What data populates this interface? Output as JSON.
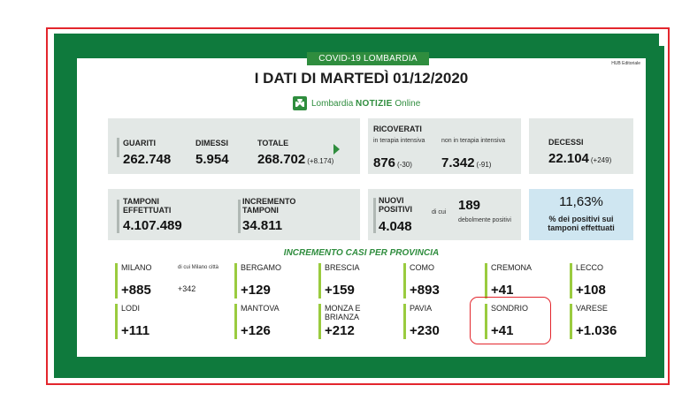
{
  "header": {
    "badge": "COVID-19 LOMBARDIA",
    "hub": "HUB Editoriale",
    "title": "I DATI DI MARTEDÌ 01/12/2020",
    "brand_main": "Lombardia ",
    "brand_bold": "NOTIZIE",
    "brand_suffix": " Online"
  },
  "stats": {
    "guariti": {
      "label": "GUARITI",
      "value": "262.748"
    },
    "dimessi": {
      "label": "DIMESSI",
      "value": "5.954"
    },
    "totale": {
      "label": "TOTALE",
      "value": "268.702",
      "delta": "(+8.174)"
    },
    "ricoverati": {
      "label": "RICOVERATI",
      "terapia_intensiva": {
        "label": "in terapia intensiva",
        "value": "876",
        "delta": "(-30)"
      },
      "non_terapia": {
        "label": "non in terapia intensiva",
        "value": "7.342",
        "delta": "(-91)"
      }
    },
    "decessi": {
      "label": "DECESSI",
      "value": "22.104",
      "delta": "(+249)"
    },
    "tamponi": {
      "label": "TAMPONI EFFETTUATI",
      "value": "4.107.489"
    },
    "incremento_tamponi": {
      "label": "INCREMENTO TAMPONI",
      "value": "34.811"
    },
    "nuovi_positivi": {
      "label": "NUOVI POSITIVI",
      "value": "4.048",
      "di_cui": "di cui",
      "debolmente": "189",
      "debolmente_label": "debolmente positivi"
    },
    "percentuale": {
      "value": "11,63%",
      "label": "% dei positivi sui tamponi effettuati"
    }
  },
  "provinces_title": "INCREMENTO CASI PER PROVINCIA",
  "provinces": [
    {
      "name": "MILANO",
      "value": "+885",
      "note": "di cui Milano città",
      "note_value": "+342"
    },
    {
      "name": "BERGAMO",
      "value": "+129"
    },
    {
      "name": "BRESCIA",
      "value": "+159"
    },
    {
      "name": "COMO",
      "value": "+893"
    },
    {
      "name": "CREMONA",
      "value": "+41"
    },
    {
      "name": "LECCO",
      "value": "+108"
    },
    {
      "name": "LODI",
      "value": "+111"
    },
    {
      "name": "MANTOVA",
      "value": "+126"
    },
    {
      "name": "MONZA E BRIANZA",
      "value": "+212"
    },
    {
      "name": "PAVIA",
      "value": "+230"
    },
    {
      "name": "SONDRIO",
      "value": "+41"
    },
    {
      "name": "VARESE",
      "value": "+1.036"
    }
  ],
  "colors": {
    "green_frame": "#0f7a3d",
    "accent_green": "#2f8d3e",
    "bar_green": "#9acb3f",
    "red": "#e3262d",
    "grey_box": "#e3e8e6",
    "blue_box": "#cfe6f1"
  }
}
